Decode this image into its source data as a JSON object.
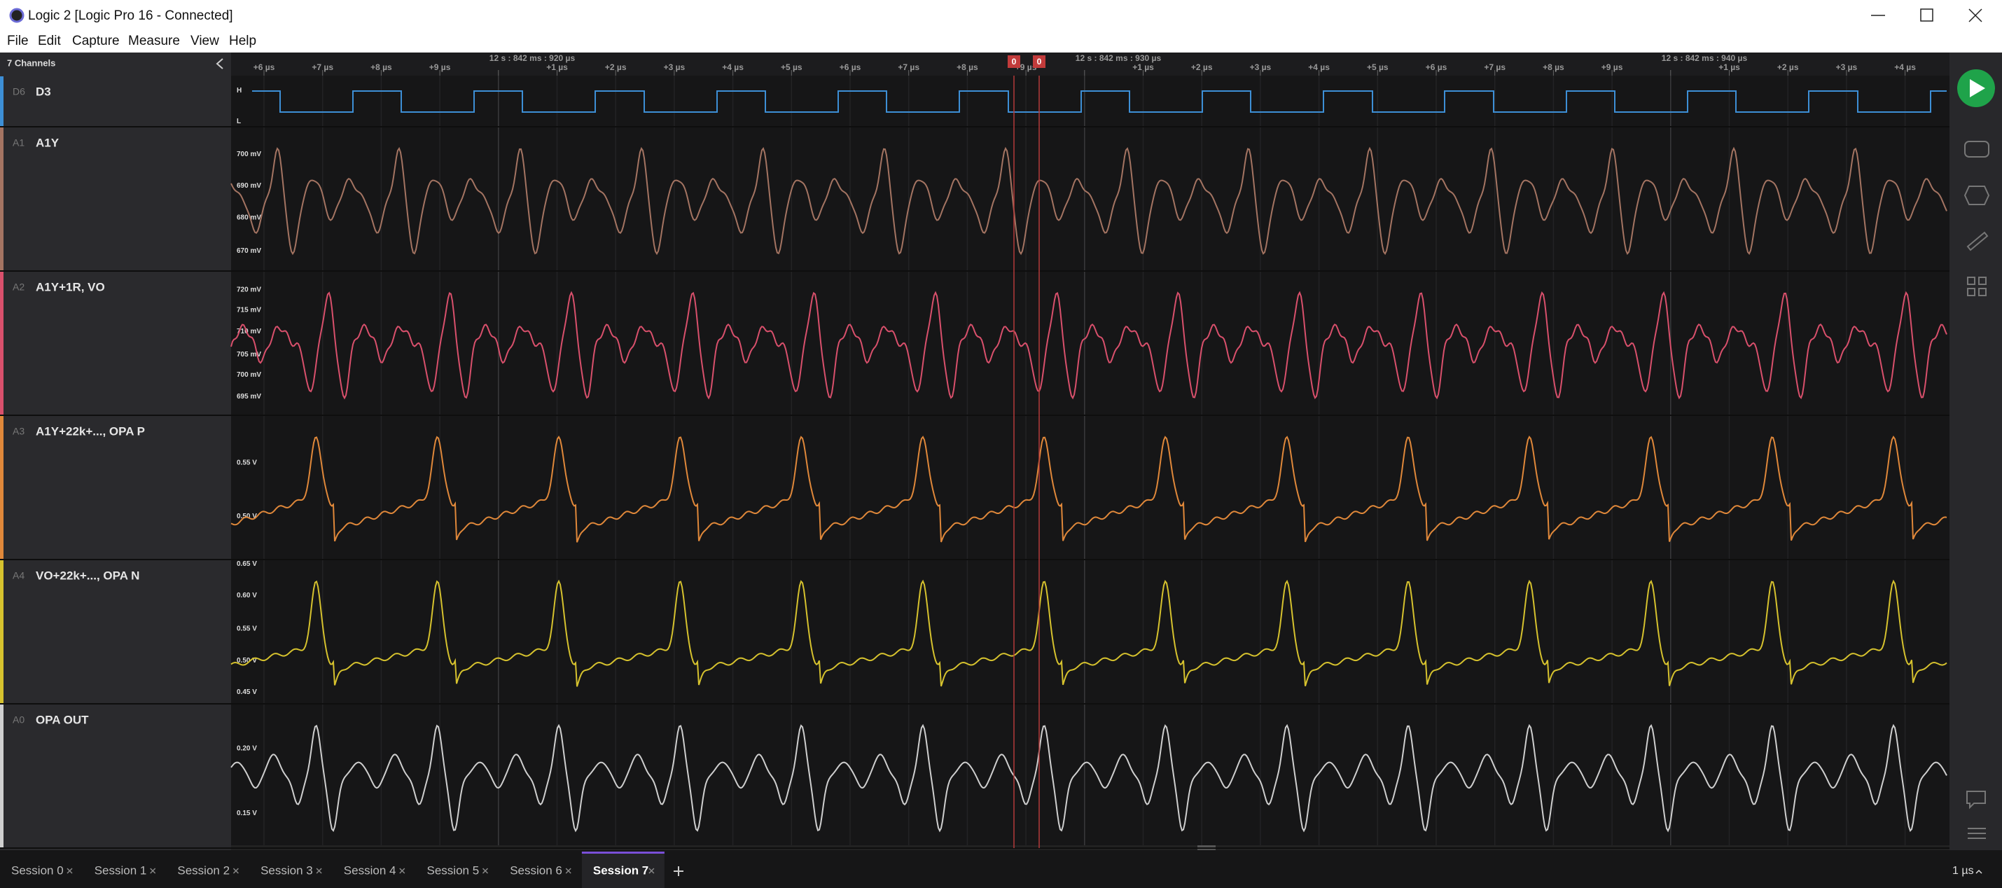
{
  "window": {
    "title": "Logic 2 [Logic Pro 16 - Connected]"
  },
  "menu": [
    "File",
    "Edit",
    "Capture",
    "Measure",
    "View",
    "Help"
  ],
  "panel": {
    "header": "7 Channels"
  },
  "channels": [
    {
      "id": "D6",
      "name": "D3",
      "scale": [
        "H",
        "L"
      ]
    },
    {
      "id": "A1",
      "name": "A1Y",
      "scale": [
        "700 mV",
        "690 mV",
        "680 mV",
        "670 mV"
      ]
    },
    {
      "id": "A2",
      "name": "A1Y+1R, VO",
      "scale": [
        "720 mV",
        "715 mV",
        "710 mV",
        "705 mV",
        "700 mV",
        "695 mV"
      ]
    },
    {
      "id": "A3",
      "name": "A1Y+22k+..., OPA P",
      "scale": [
        "0.55 V",
        "0.50 V"
      ]
    },
    {
      "id": "A4",
      "name": "VO+22k+..., OPA N",
      "scale": [
        "0.65 V",
        "0.60 V",
        "0.55 V",
        "0.50 V",
        "0.45 V"
      ]
    },
    {
      "id": "A0",
      "name": "OPA OUT",
      "scale": [
        "0.20 V",
        "0.15 V"
      ]
    }
  ],
  "ruler": [
    "+6 µs",
    "+7 µs",
    "+8 µs",
    "+9 µs",
    "12 s : 842 ms : 920 µs",
    "+1 µs",
    "+2 µs",
    "+3 µs",
    "+4 µs",
    "+5 µs",
    "+6 µs",
    "+7 µs",
    "+8 µs",
    "+9 µs",
    "12 s : 842 ms : 930 µs",
    "+1 µs",
    "+2 µs",
    "+3 µs",
    "+4 µs",
    "+5 µs",
    "+6 µs",
    "+7 µs",
    "+8 µs",
    "+9 µs",
    "12 s : 842 ms : 940 µs",
    "+1 µs",
    "+2 µs",
    "+3 µs",
    "+4 µs"
  ],
  "markers": [
    "0",
    "0"
  ],
  "sessions": [
    "Session 0",
    "Session 1",
    "Session 2",
    "Session 3",
    "Session 4",
    "Session 5",
    "Session 6",
    "Session 7"
  ],
  "zoom": "1 µs"
}
